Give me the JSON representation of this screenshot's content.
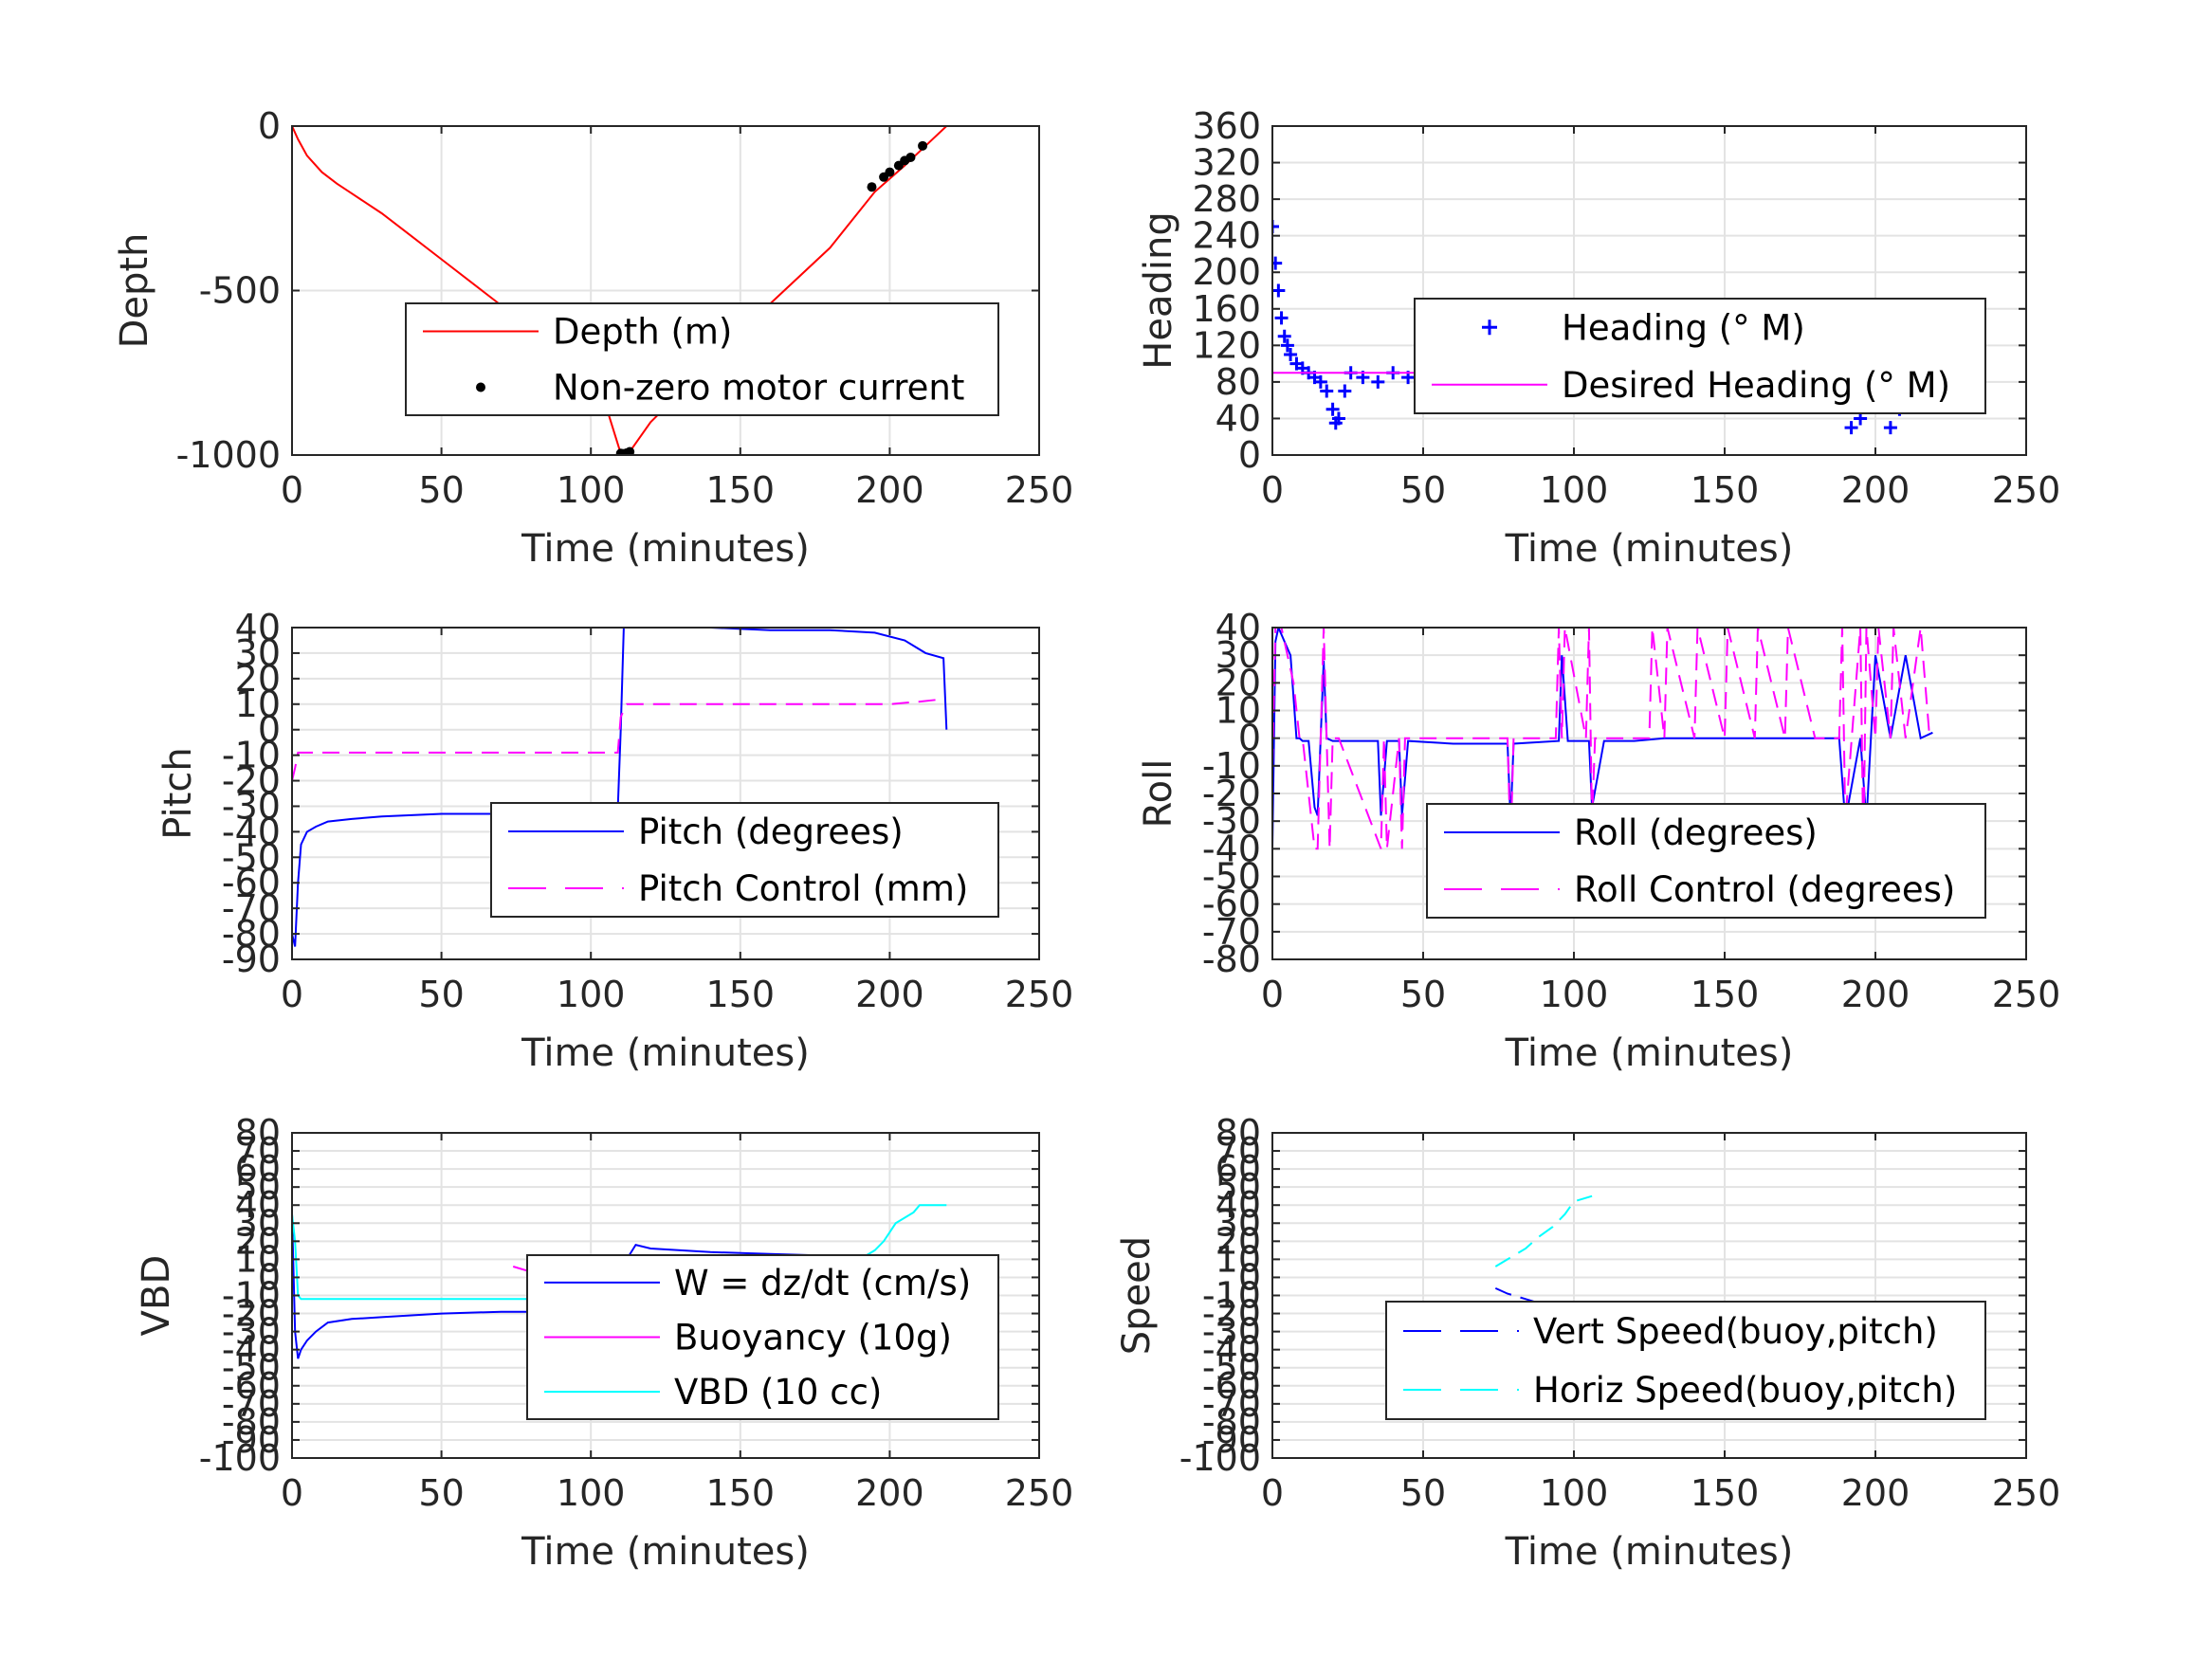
{
  "chart_data": [
    {
      "type": "line",
      "ylabel": "Depth",
      "xlabel": "Time (minutes)",
      "xlim": [
        0,
        250
      ],
      "ylim": [
        -1000,
        0
      ],
      "xticks": [
        "0",
        "50",
        "100",
        "150",
        "200",
        "250"
      ],
      "yticks": [
        "-1000",
        "-500",
        "0"
      ],
      "grid": true,
      "legend_position": "center-right",
      "series": [
        {
          "name": "Depth (m)",
          "color": "#ff0000",
          "style": "solid",
          "x": [
            0,
            2,
            5,
            10,
            15,
            20,
            30,
            40,
            50,
            60,
            70,
            80,
            90,
            100,
            105,
            110,
            113,
            120,
            140,
            160,
            180,
            195,
            205,
            212,
            219
          ],
          "y": [
            0,
            -40,
            -90,
            -140,
            -175,
            -205,
            -265,
            -335,
            -405,
            -475,
            -545,
            -620,
            -700,
            -790,
            -850,
            -995,
            -990,
            -900,
            -720,
            -540,
            -370,
            -200,
            -120,
            -60,
            0
          ]
        },
        {
          "name": "Non-zero motor current",
          "color": "#000000",
          "style": "marker",
          "x": [
            110,
            111,
            112,
            113,
            194,
            198,
            200,
            203,
            205,
            207,
            211
          ],
          "y": [
            -995,
            -996,
            -994,
            -990,
            -185,
            -155,
            -140,
            -120,
            -105,
            -95,
            -60
          ]
        }
      ]
    },
    {
      "type": "scatter",
      "ylabel": "Heading",
      "xlabel": "Time (minutes)",
      "xlim": [
        0,
        250
      ],
      "ylim": [
        0,
        360
      ],
      "xticks": [
        "0",
        "50",
        "100",
        "150",
        "200",
        "250"
      ],
      "yticks": [
        "0",
        "40",
        "80",
        "120",
        "160",
        "200",
        "240",
        "280",
        "320",
        "360"
      ],
      "grid": true,
      "legend_position": "center-right",
      "series": [
        {
          "name": "Heading (° M)",
          "color": "#0000ff",
          "style": "plus",
          "x": [
            0,
            1,
            2,
            3,
            4,
            5,
            6,
            8,
            10,
            12,
            14,
            16,
            18,
            20,
            21,
            22,
            24,
            26,
            30,
            35,
            40,
            45,
            50,
            55,
            60,
            65,
            70,
            75,
            80,
            85,
            90,
            95,
            100,
            105,
            110,
            115,
            120,
            125,
            130,
            135,
            140,
            145,
            150,
            155,
            160,
            165,
            170,
            175,
            180,
            185,
            188,
            190,
            192,
            195,
            198,
            200,
            203,
            205,
            208,
            210,
            212,
            215,
            218
          ],
          "y": [
            250,
            210,
            180,
            150,
            130,
            120,
            110,
            100,
            95,
            90,
            85,
            80,
            70,
            50,
            35,
            40,
            70,
            90,
            85,
            80,
            90,
            85,
            75,
            90,
            85,
            95,
            85,
            90,
            80,
            85,
            95,
            80,
            90,
            100,
            85,
            75,
            95,
            80,
            90,
            85,
            100,
            80,
            90,
            75,
            95,
            85,
            80,
            90,
            85,
            110,
            95,
            60,
            30,
            40,
            70,
            100,
            60,
            30,
            50,
            90,
            80,
            100,
            85
          ]
        },
        {
          "name": "Desired Heading (° M)",
          "color": "#ff00ff",
          "style": "solid",
          "x": [
            0,
            219
          ],
          "y": [
            90,
            90
          ]
        }
      ]
    },
    {
      "type": "line",
      "ylabel": "Pitch",
      "xlabel": "Time (minutes)",
      "xlim": [
        0,
        250
      ],
      "ylim": [
        -90,
        40
      ],
      "xticks": [
        "0",
        "50",
        "100",
        "150",
        "200",
        "250"
      ],
      "yticks": [
        "-90",
        "-80",
        "-70",
        "-60",
        "-50",
        "-40",
        "-30",
        "-20",
        "-10",
        "0",
        "10",
        "20",
        "30",
        "40"
      ],
      "grid": true,
      "legend_position": "bottom-right",
      "series": [
        {
          "name": "Pitch (degrees)",
          "color": "#0000ff",
          "style": "solid",
          "x": [
            0,
            1,
            2,
            3,
            5,
            8,
            12,
            20,
            30,
            50,
            70,
            90,
            105,
            109,
            110,
            111,
            112,
            120,
            140,
            160,
            180,
            195,
            205,
            212,
            218,
            219
          ],
          "y": [
            -80,
            -85,
            -60,
            -45,
            -40,
            -38,
            -36,
            -35,
            -34,
            -33,
            -33,
            -32,
            -32,
            -31,
            0,
            40,
            40,
            40,
            40,
            39,
            39,
            38,
            35,
            30,
            28,
            0
          ]
        },
        {
          "name": "Pitch Control (mm)",
          "color": "#ff00ff",
          "style": "dashed",
          "x": [
            0,
            1,
            2,
            3,
            5,
            50,
            100,
            109,
            110,
            112,
            150,
            200,
            210,
            218
          ],
          "y": [
            -20,
            -15,
            -9,
            -9,
            -9,
            -9,
            -9,
            -9,
            5,
            10,
            10,
            10,
            11,
            12
          ]
        }
      ]
    },
    {
      "type": "line",
      "ylabel": "Roll",
      "xlabel": "Time (minutes)",
      "xlim": [
        0,
        250
      ],
      "ylim": [
        -80,
        40
      ],
      "xticks": [
        "0",
        "50",
        "100",
        "150",
        "200",
        "250"
      ],
      "yticks": [
        "-80",
        "-70",
        "-60",
        "-50",
        "-40",
        "-30",
        "-20",
        "-10",
        "0",
        "10",
        "20",
        "30",
        "40"
      ],
      "grid": true,
      "legend_position": "bottom-right",
      "series": [
        {
          "name": "Roll (degrees)",
          "color": "#0000ff",
          "style": "solid",
          "x": [
            0,
            1,
            2,
            4,
            6,
            8,
            9,
            10,
            12,
            14,
            15,
            16,
            17,
            18,
            20,
            22,
            30,
            35,
            36,
            38,
            42,
            43,
            45,
            60,
            78,
            79,
            80,
            95,
            96,
            98,
            100,
            105,
            106,
            110,
            120,
            130,
            140,
            150,
            160,
            170,
            180,
            185,
            188,
            190,
            195,
            197,
            200,
            205,
            210,
            215,
            219
          ],
          "y": [
            -40,
            35,
            40,
            35,
            30,
            0,
            0,
            -1,
            -1,
            -25,
            -28,
            0,
            28,
            0,
            -1,
            -1,
            -1,
            -1,
            -28,
            -1,
            -1,
            -28,
            -1,
            -2,
            -2,
            -30,
            -2,
            -1,
            30,
            -1,
            -1,
            -1,
            -25,
            -1,
            -1,
            0,
            0,
            0,
            0,
            0,
            0,
            0,
            0,
            -30,
            0,
            -30,
            30,
            0,
            30,
            0,
            2
          ]
        },
        {
          "name": "Roll Control (degrees)",
          "color": "#ff00ff",
          "style": "dashed",
          "x": [
            0,
            1,
            3,
            5,
            7,
            9,
            10,
            14,
            15,
            16,
            17,
            18,
            19,
            20,
            22,
            36,
            37,
            38,
            42,
            43,
            44,
            60,
            78,
            79,
            80,
            94,
            95,
            96,
            97,
            104,
            105,
            106,
            107,
            110,
            120,
            125,
            126,
            130,
            131,
            140,
            141,
            150,
            151,
            160,
            161,
            170,
            171,
            180,
            188,
            189,
            190,
            195,
            196,
            197,
            200,
            201,
            205,
            206,
            210,
            215,
            218
          ],
          "y": [
            -10,
            40,
            40,
            30,
            20,
            0,
            0,
            -40,
            -40,
            0,
            40,
            0,
            -40,
            0,
            0,
            -40,
            0,
            -40,
            0,
            -40,
            0,
            0,
            0,
            -40,
            0,
            0,
            40,
            0,
            40,
            0,
            40,
            -30,
            0,
            0,
            0,
            0,
            40,
            0,
            40,
            0,
            40,
            0,
            40,
            0,
            40,
            0,
            40,
            0,
            0,
            40,
            -30,
            40,
            -40,
            40,
            0,
            40,
            0,
            40,
            0,
            40,
            0
          ]
        }
      ]
    },
    {
      "type": "line",
      "ylabel": "VBD",
      "xlabel": "Time (minutes)",
      "xlim": [
        0,
        250
      ],
      "ylim": [
        -100,
        80
      ],
      "xticks": [
        "0",
        "50",
        "100",
        "150",
        "200",
        "250"
      ],
      "yticks": [
        "-100",
        "-90",
        "-80",
        "-70",
        "-60",
        "-50",
        "-40",
        "-30",
        "-20",
        "-10",
        "0",
        "10",
        "20",
        "30",
        "40",
        "50",
        "60",
        "70",
        "80"
      ],
      "grid": true,
      "legend_position": "bottom-right",
      "series": [
        {
          "name": "W = dz/dt (cm/s)",
          "color": "#0000ff",
          "style": "solid",
          "x": [
            0,
            1,
            2,
            3,
            5,
            8,
            12,
            20,
            30,
            50,
            70,
            90,
            105,
            109,
            110,
            112,
            115,
            120,
            140,
            160,
            180,
            190,
            200,
            205,
            210,
            215,
            218
          ],
          "y": [
            35,
            -30,
            -45,
            -40,
            -35,
            -30,
            -25,
            -23,
            -22,
            -20,
            -19,
            -19,
            -19,
            -18,
            0,
            10,
            18,
            16,
            14,
            13,
            12,
            12,
            8,
            12,
            8,
            10,
            0
          ]
        },
        {
          "name": "Buoyancy (10g)",
          "color": "#ff00ff",
          "style": "solid",
          "x": [
            74,
            80,
            88,
            95,
            100,
            105,
            107
          ],
          "y": [
            6,
            3,
            -3,
            -10,
            -17,
            -23,
            -25
          ]
        },
        {
          "name": "VBD (10 cc)",
          "color": "#00ffff",
          "style": "solid",
          "x": [
            0,
            1,
            2,
            3,
            50,
            100,
            109,
            112,
            190,
            195,
            198,
            200,
            202,
            208,
            210,
            215,
            219
          ],
          "y": [
            35,
            20,
            -10,
            -12,
            -12,
            -12,
            -12,
            10,
            10,
            15,
            20,
            25,
            30,
            36,
            40,
            40,
            40
          ]
        }
      ]
    },
    {
      "type": "line",
      "ylabel": "Speed",
      "xlabel": "Time (minutes)",
      "xlim": [
        0,
        250
      ],
      "ylim": [
        -100,
        80
      ],
      "xticks": [
        "0",
        "50",
        "100",
        "150",
        "200",
        "250"
      ],
      "yticks": [
        "-100",
        "-90",
        "-80",
        "-70",
        "-60",
        "-50",
        "-40",
        "-30",
        "-20",
        "-10",
        "0",
        "10",
        "20",
        "30",
        "40",
        "50",
        "60",
        "70",
        "80"
      ],
      "grid": true,
      "legend_position": "bottom-right",
      "series": [
        {
          "name": "Vert Speed(buoy,pitch)",
          "color": "#0000ff",
          "style": "dashed",
          "x": [
            74,
            78,
            84,
            88,
            93,
            96,
            100
          ],
          "y": [
            -6,
            -9,
            -12,
            -14,
            -18,
            -23,
            -27
          ]
        },
        {
          "name": "Horiz Speed(buoy,pitch)",
          "color": "#00ffff",
          "style": "dashed",
          "x": [
            74,
            78,
            84,
            88,
            93,
            97,
            100,
            106
          ],
          "y": [
            6,
            10,
            16,
            22,
            28,
            35,
            42,
            45
          ]
        }
      ]
    }
  ]
}
